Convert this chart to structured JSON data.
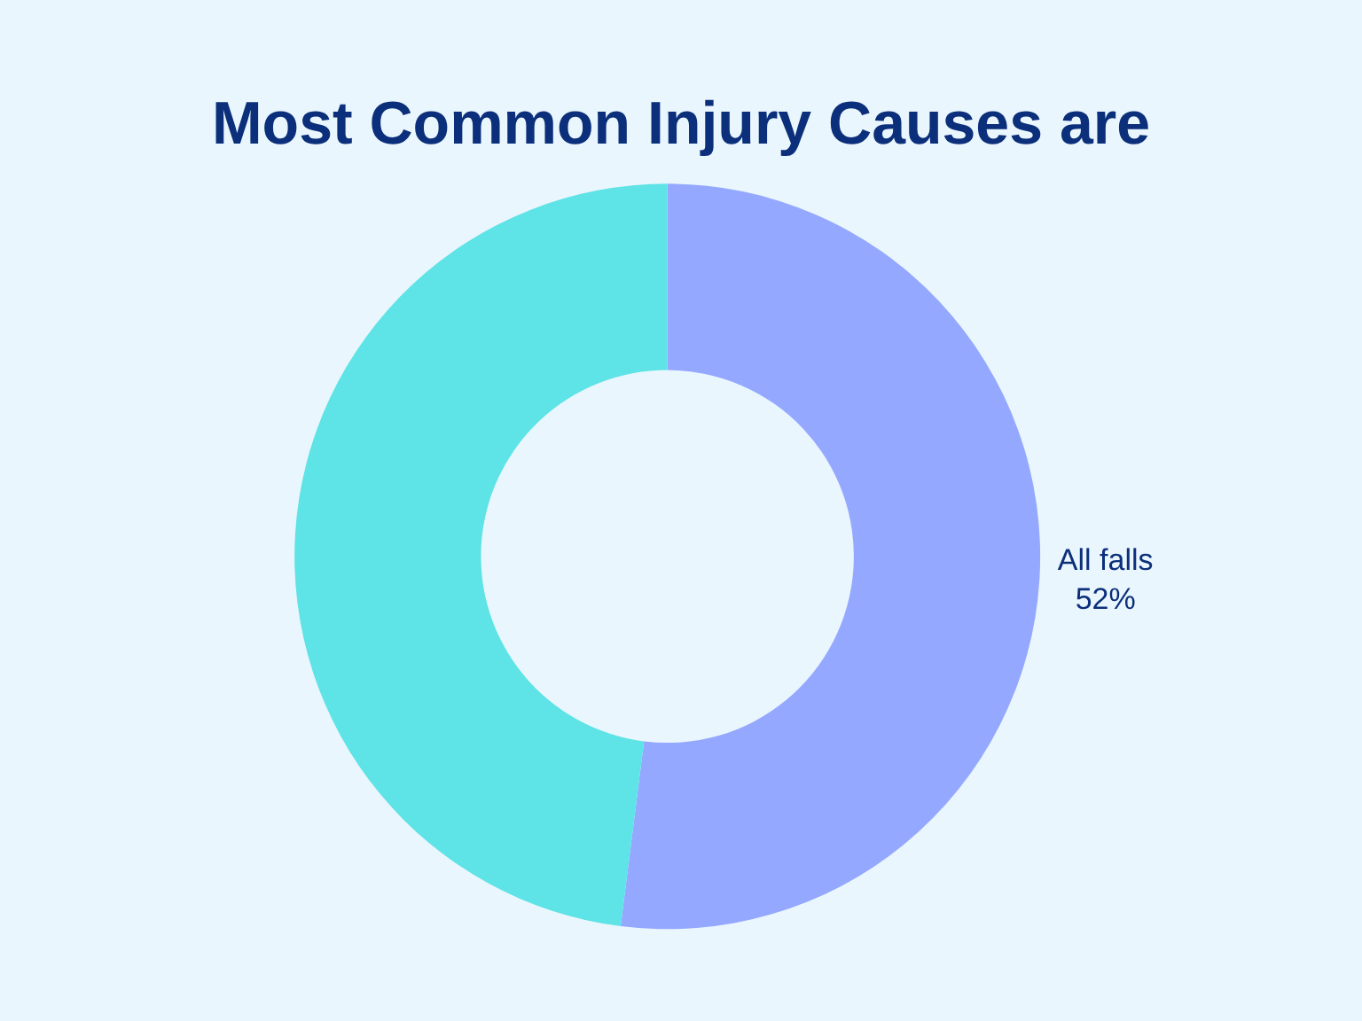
{
  "chart_data": {
    "type": "donut",
    "title": "Most Common Injury Causes are",
    "categories": [
      "All falls",
      null
    ],
    "values": [
      52,
      48
    ],
    "value_labels": [
      "52%",
      null
    ],
    "colors": [
      "#94a8ff",
      "#5ee3e6"
    ]
  }
}
